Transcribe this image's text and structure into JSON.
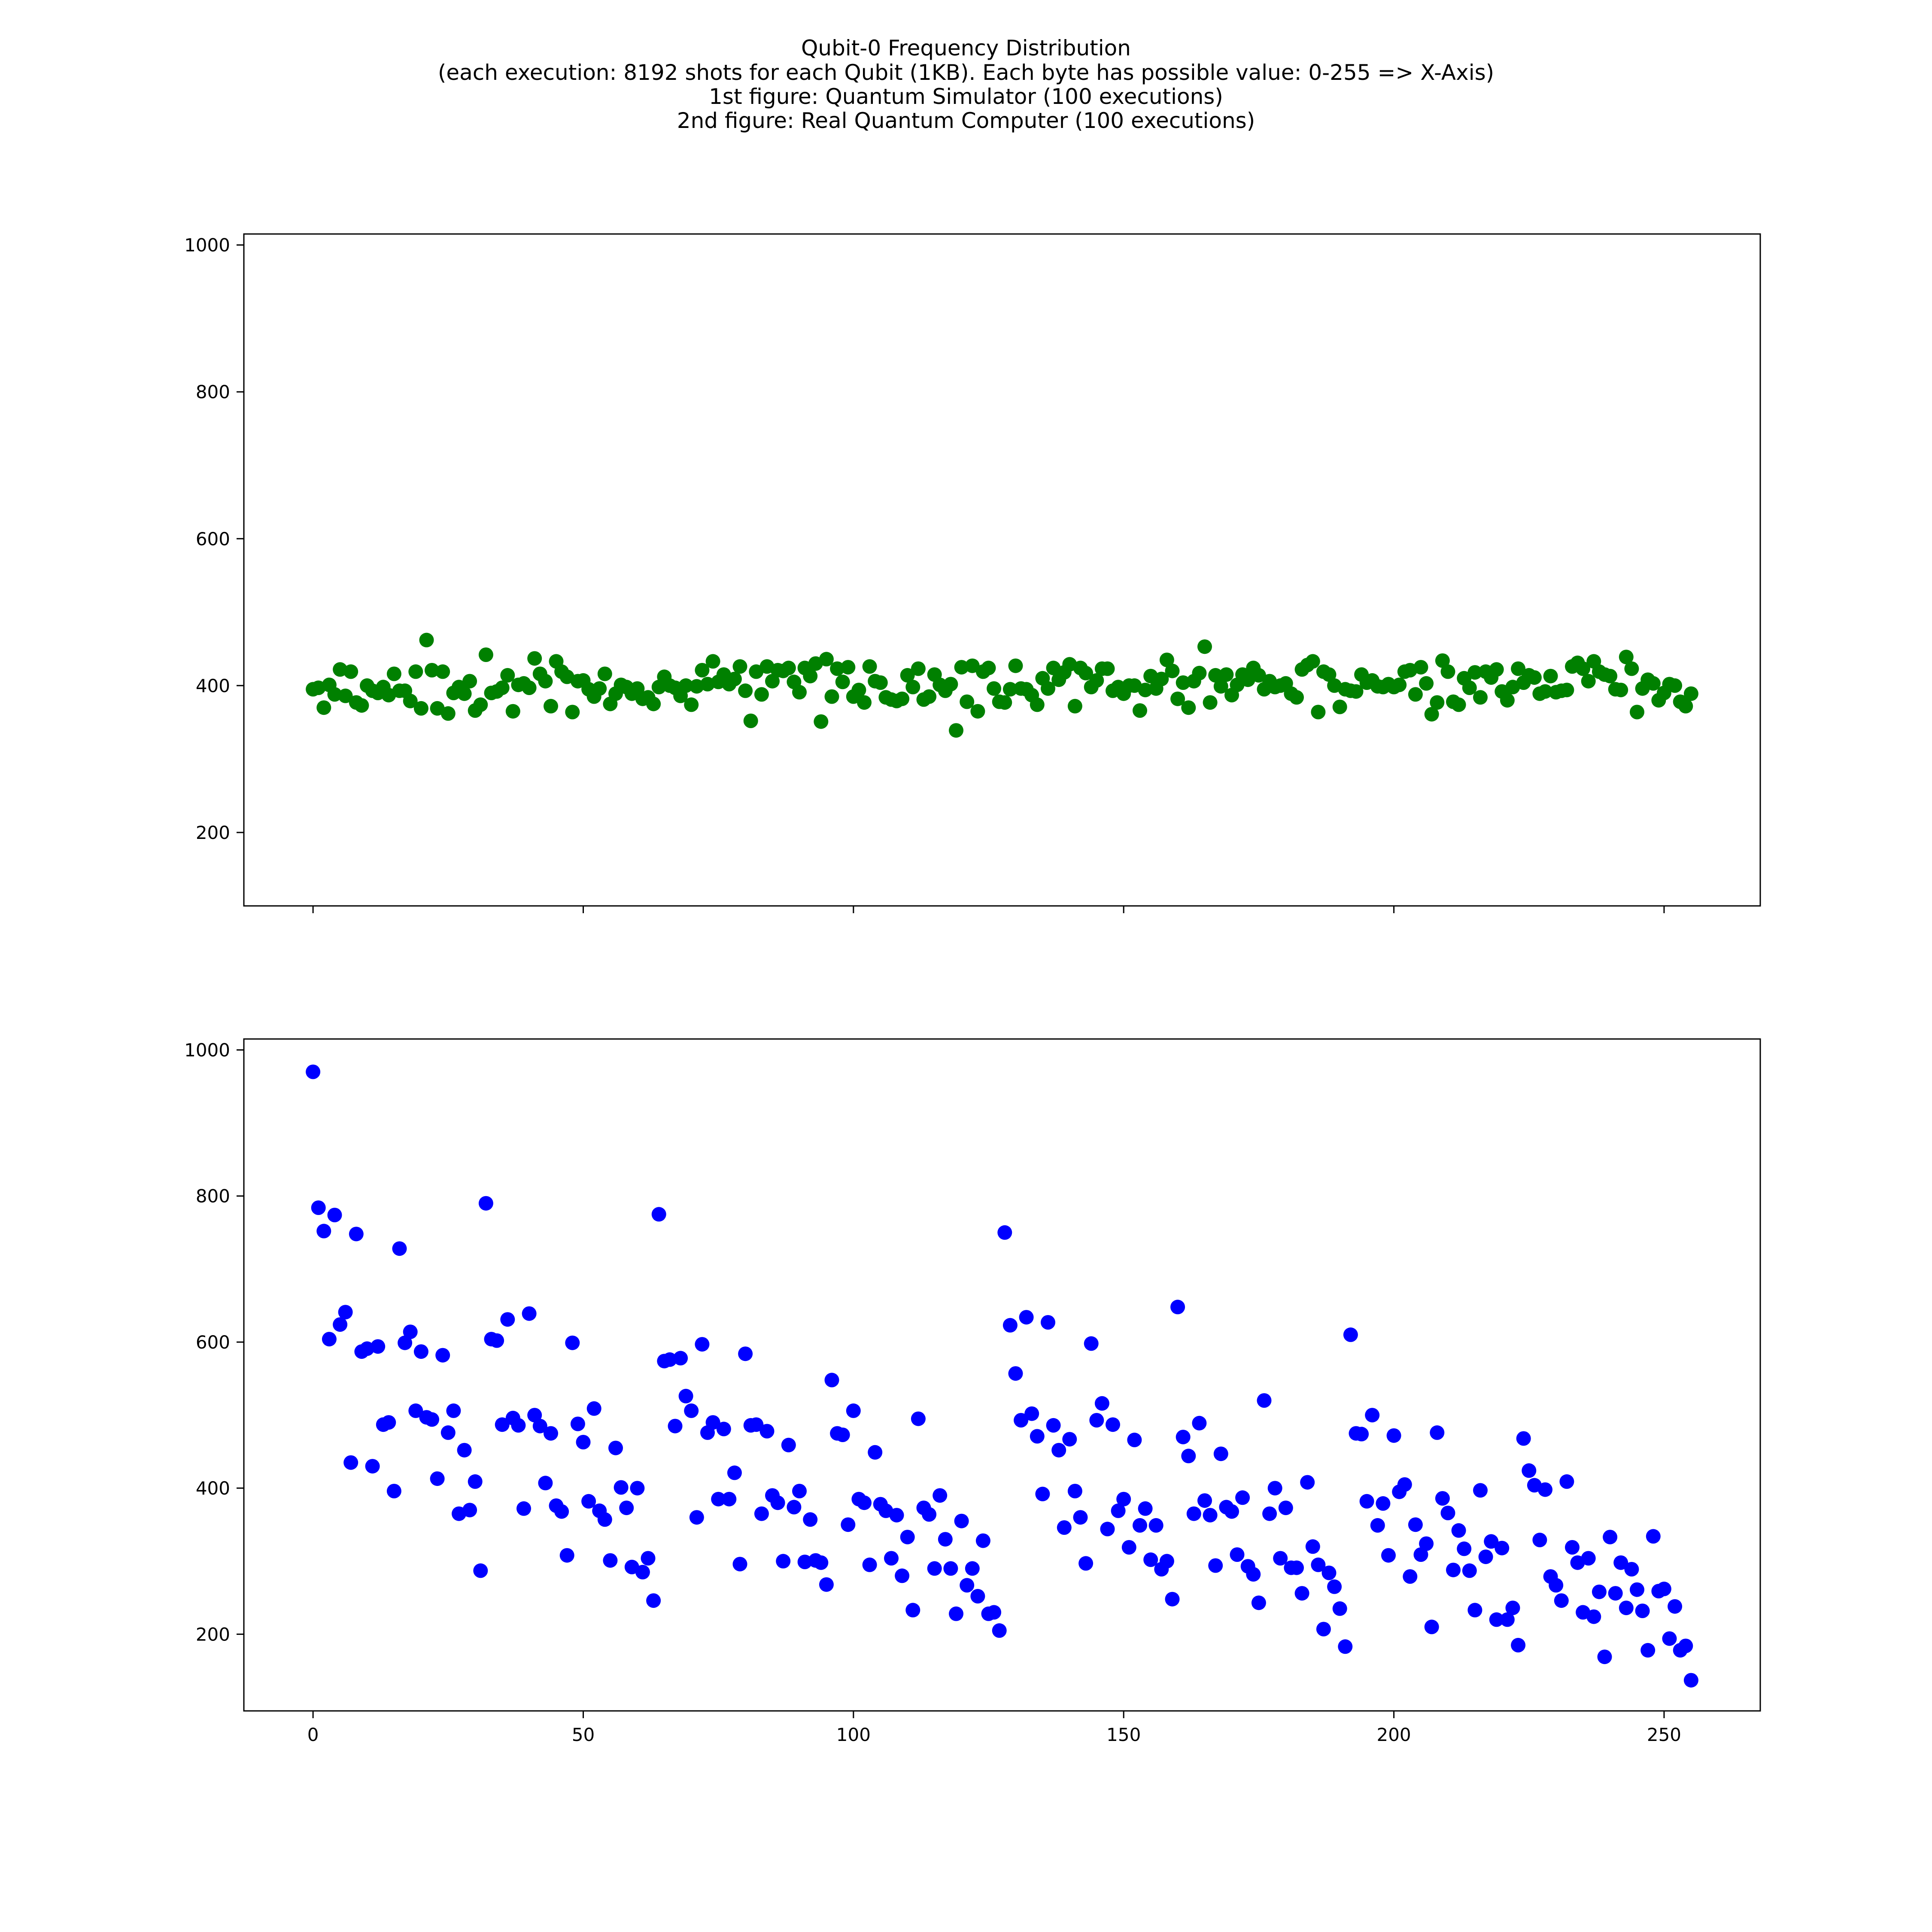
{
  "figure": {
    "title_lines": [
      "Qubit-0 Frequency Distribution",
      "(each execution: 8192 shots for each Qubit (1KB). Each byte has possible value: 0-255 => X-Axis)",
      "1st figure: Quantum Simulator (100 executions)",
      "2nd figure: Real Quantum Computer (100 executions)"
    ]
  },
  "chart_data": [
    {
      "type": "scatter",
      "title": "",
      "xlabel": "",
      "ylabel": "",
      "xlim": [
        -12.8,
        267.8
      ],
      "ylim": [
        100,
        1015
      ],
      "xticks": [
        0,
        50,
        100,
        150,
        200,
        250
      ],
      "yticks": [
        200,
        400,
        600,
        800,
        1000
      ],
      "show_xtick_labels": false,
      "grid": false,
      "series": [
        {
          "color": "#008000",
          "x": [
            0,
            1,
            2,
            3,
            4,
            5,
            6,
            7,
            8,
            9,
            10,
            11,
            12,
            13,
            14,
            15,
            16,
            17,
            18,
            19,
            20,
            21,
            22,
            23,
            24,
            25,
            26,
            27,
            28,
            29,
            30,
            31,
            32,
            33,
            34,
            35,
            36,
            37,
            38,
            39,
            40,
            41,
            42,
            43,
            44,
            45,
            46,
            47,
            48,
            49,
            50,
            51,
            52,
            53,
            54,
            55,
            56,
            57,
            58,
            59,
            60,
            61,
            62,
            63,
            64,
            65,
            66,
            67,
            68,
            69,
            70,
            71,
            72,
            73,
            74,
            75,
            76,
            77,
            78,
            79,
            80,
            81,
            82,
            83,
            84,
            85,
            86,
            87,
            88,
            89,
            90,
            91,
            92,
            93,
            94,
            95,
            96,
            97,
            98,
            99,
            100,
            101,
            102,
            103,
            104,
            105,
            106,
            107,
            108,
            109,
            110,
            111,
            112,
            113,
            114,
            115,
            116,
            117,
            118,
            119,
            120,
            121,
            122,
            123,
            124,
            125,
            126,
            127,
            128,
            129,
            130,
            131,
            132,
            133,
            134,
            135,
            136,
            137,
            138,
            139,
            140,
            141,
            142,
            143,
            144,
            145,
            146,
            147,
            148,
            149,
            150,
            151,
            152,
            153,
            154,
            155,
            156,
            157,
            158,
            159,
            160,
            161,
            162,
            163,
            164,
            165,
            166,
            167,
            168,
            169,
            170,
            171,
            172,
            173,
            174,
            175,
            176,
            177,
            178,
            179,
            180,
            181,
            182,
            183,
            184,
            185,
            186,
            187,
            188,
            189,
            190,
            191,
            192,
            193,
            194,
            195,
            196,
            197,
            198,
            199,
            200,
            201,
            202,
            203,
            204,
            205,
            206,
            207,
            208,
            209,
            210,
            211,
            212,
            213,
            214,
            215,
            216,
            217,
            218,
            219,
            220,
            221,
            222,
            223,
            224,
            225,
            226,
            227,
            228,
            229,
            230,
            231,
            232,
            233,
            234,
            235,
            236,
            237,
            238,
            239,
            240,
            241,
            242,
            243,
            244,
            245,
            246,
            247,
            248,
            249,
            250,
            251,
            252,
            253,
            254,
            255
          ],
          "y": [
            395,
            397,
            370,
            401,
            388,
            422,
            386,
            419,
            377,
            373,
            400,
            393,
            390,
            398,
            387,
            416,
            393,
            393,
            379,
            419,
            369,
            462,
            421,
            369,
            419,
            362,
            390,
            398,
            389,
            406,
            366,
            374,
            442,
            390,
            392,
            397,
            414,
            365,
            401,
            403,
            397,
            437,
            416,
            406,
            372,
            433,
            419,
            412,
            364,
            406,
            407,
            395,
            385,
            396,
            416,
            375,
            389,
            401,
            398,
            389,
            396,
            382,
            384,
            375,
            398,
            412,
            400,
            397,
            386,
            400,
            374,
            399,
            421,
            402,
            433,
            405,
            415,
            402,
            409,
            426,
            393,
            352,
            419,
            388,
            426,
            406,
            421,
            420,
            424,
            405,
            391,
            424,
            413,
            430,
            351,
            436,
            385,
            423,
            405,
            425,
            385,
            394,
            377,
            426,
            406,
            404,
            384,
            381,
            379,
            382,
            414,
            398,
            423,
            381,
            385,
            415,
            401,
            393,
            402,
            339,
            425,
            378,
            427,
            365,
            419,
            424,
            396,
            378,
            377,
            395,
            427,
            396,
            395,
            387,
            374,
            410,
            396,
            424,
            408,
            418,
            429,
            372,
            424,
            417,
            398,
            407,
            423,
            423,
            393,
            398,
            389,
            400,
            400,
            366,
            394,
            413,
            396,
            409,
            435,
            420,
            382,
            404,
            370,
            406,
            417,
            453,
            377,
            414,
            399,
            415,
            387,
            401,
            415,
            408,
            424,
            414,
            395,
            406,
            398,
            400,
            403,
            389,
            384,
            422,
            428,
            433,
            364,
            419,
            415,
            400,
            371,
            395,
            393,
            392,
            415,
            404,
            407,
            399,
            398,
            402,
            398,
            401,
            419,
            421,
            388,
            425,
            403,
            361,
            377,
            434,
            419,
            378,
            374,
            410,
            397,
            418,
            384,
            419,
            411,
            422,
            392,
            380,
            398,
            423,
            404,
            414,
            411,
            389,
            392,
            413,
            391,
            393,
            394,
            426,
            431,
            423,
            406,
            433,
            419,
            415,
            413,
            395,
            394,
            439,
            423,
            364,
            396,
            408,
            403,
            380,
            390,
            402,
            400,
            378,
            372,
            389
          ]
        }
      ]
    },
    {
      "type": "scatter",
      "title": "",
      "xlabel": "",
      "ylabel": "",
      "xlim": [
        -12.8,
        267.8
      ],
      "ylim": [
        95,
        1015
      ],
      "xticks": [
        0,
        50,
        100,
        150,
        200,
        250
      ],
      "yticks": [
        200,
        400,
        600,
        800,
        1000
      ],
      "show_xtick_labels": true,
      "grid": false,
      "series": [
        {
          "color": "#0000ff",
          "x": [
            0,
            1,
            2,
            3,
            4,
            5,
            6,
            7,
            8,
            9,
            10,
            11,
            12,
            13,
            14,
            15,
            16,
            17,
            18,
            19,
            20,
            21,
            22,
            23,
            24,
            25,
            26,
            27,
            28,
            29,
            30,
            31,
            32,
            33,
            34,
            35,
            36,
            37,
            38,
            39,
            40,
            41,
            42,
            43,
            44,
            45,
            46,
            47,
            48,
            49,
            50,
            51,
            52,
            53,
            54,
            55,
            56,
            57,
            58,
            59,
            60,
            61,
            62,
            63,
            64,
            65,
            66,
            67,
            68,
            69,
            70,
            71,
            72,
            73,
            74,
            75,
            76,
            77,
            78,
            79,
            80,
            81,
            82,
            83,
            84,
            85,
            86,
            87,
            88,
            89,
            90,
            91,
            92,
            93,
            94,
            95,
            96,
            97,
            98,
            99,
            100,
            101,
            102,
            103,
            104,
            105,
            106,
            107,
            108,
            109,
            110,
            111,
            112,
            113,
            114,
            115,
            116,
            117,
            118,
            119,
            120,
            121,
            122,
            123,
            124,
            125,
            126,
            127,
            128,
            129,
            130,
            131,
            132,
            133,
            134,
            135,
            136,
            137,
            138,
            139,
            140,
            141,
            142,
            143,
            144,
            145,
            146,
            147,
            148,
            149,
            150,
            151,
            152,
            153,
            154,
            155,
            156,
            157,
            158,
            159,
            160,
            161,
            162,
            163,
            164,
            165,
            166,
            167,
            168,
            169,
            170,
            171,
            172,
            173,
            174,
            175,
            176,
            177,
            178,
            179,
            180,
            181,
            182,
            183,
            184,
            185,
            186,
            187,
            188,
            189,
            190,
            191,
            192,
            193,
            194,
            195,
            196,
            197,
            198,
            199,
            200,
            201,
            202,
            203,
            204,
            205,
            206,
            207,
            208,
            209,
            210,
            211,
            212,
            213,
            214,
            215,
            216,
            217,
            218,
            219,
            220,
            221,
            222,
            223,
            224,
            225,
            226,
            227,
            228,
            229,
            230,
            231,
            232,
            233,
            234,
            235,
            236,
            237,
            238,
            239,
            240,
            241,
            242,
            243,
            244,
            245,
            246,
            247,
            248,
            249,
            250,
            251,
            252,
            253,
            254,
            255
          ],
          "y": [
            970,
            784,
            752,
            604,
            774,
            624,
            641,
            435,
            748,
            587,
            591,
            430,
            594,
            487,
            490,
            396,
            728,
            599,
            614,
            506,
            587,
            497,
            494,
            413,
            582,
            476,
            506,
            365,
            452,
            370,
            409,
            287,
            790,
            604,
            602,
            487,
            631,
            496,
            486,
            372,
            639,
            500,
            485,
            407,
            475,
            376,
            368,
            308,
            599,
            488,
            463,
            382,
            509,
            369,
            357,
            301,
            455,
            401,
            373,
            292,
            400,
            285,
            304,
            246,
            775,
            574,
            576,
            485,
            578,
            526,
            506,
            360,
            597,
            476,
            490,
            385,
            481,
            385,
            421,
            296,
            584,
            486,
            487,
            365,
            478,
            390,
            380,
            300,
            459,
            374,
            396,
            299,
            357,
            301,
            298,
            268,
            548,
            475,
            473,
            350,
            506,
            385,
            380,
            295,
            449,
            378,
            369,
            304,
            363,
            280,
            333,
            233,
            495,
            373,
            364,
            290,
            390,
            330,
            290,
            228,
            355,
            267,
            290,
            252,
            328,
            228,
            230,
            205,
            750,
            623,
            557,
            493,
            634,
            502,
            471,
            392,
            627,
            486,
            452,
            346,
            467,
            396,
            360,
            297,
            598,
            493,
            516,
            344,
            487,
            369,
            385,
            319,
            466,
            349,
            372,
            302,
            349,
            289,
            300,
            248,
            648,
            470,
            444,
            365,
            489,
            383,
            363,
            294,
            447,
            374,
            368,
            309,
            387,
            293,
            282,
            243,
            520,
            365,
            400,
            304,
            373,
            291,
            291,
            256,
            408,
            320,
            295,
            207,
            284,
            265,
            235,
            183,
            610,
            475,
            474,
            382,
            500,
            349,
            379,
            308,
            472,
            395,
            405,
            279,
            350,
            309,
            324,
            210,
            476,
            386,
            366,
            288,
            342,
            317,
            287,
            233,
            397,
            306,
            327,
            220,
            318,
            220,
            236,
            185,
            468,
            424,
            404,
            329,
            398,
            279,
            267,
            246,
            409,
            319,
            298,
            230,
            304,
            224,
            258,
            169,
            333,
            256,
            298,
            236,
            289,
            261,
            232,
            178,
            334,
            259,
            262,
            194,
            238,
            178,
            184,
            137
          ]
        }
      ]
    }
  ]
}
